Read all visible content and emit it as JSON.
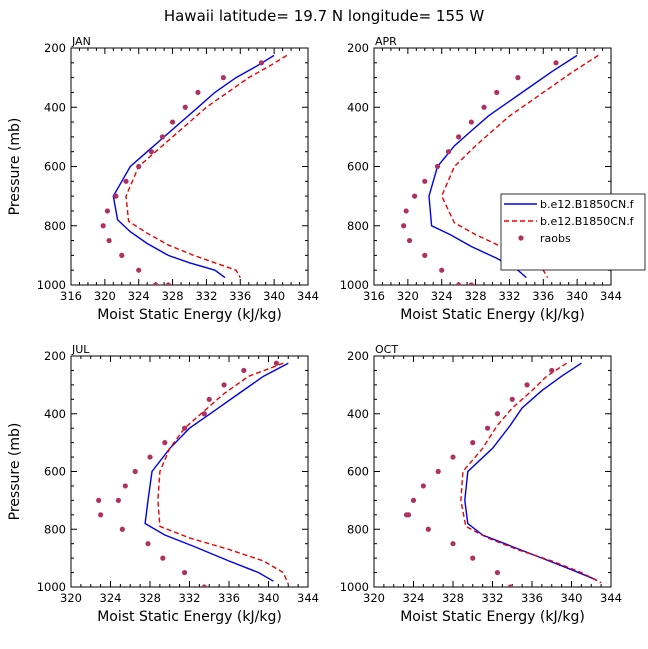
{
  "figure": {
    "title": "Hawaii  latitude= 19.7 N longitude= 155 W"
  },
  "chart_data": [
    {
      "type": "line",
      "panel": "JAN",
      "title": "JAN",
      "xlabel": "Moist Static Energy (kJ/kg)",
      "ylabel": "Pressure (mb)",
      "xlim": [
        316,
        344
      ],
      "ylim": [
        1000,
        200
      ],
      "xticks": [
        316,
        320,
        324,
        328,
        332,
        336,
        340,
        344
      ],
      "yticks": [
        200,
        400,
        600,
        800,
        1000
      ],
      "series": [
        {
          "name": "b.e12.B1850CN.f",
          "style": "solid",
          "color": "#0000ee",
          "x": [
            340.0,
            338.0,
            335.5,
            333.0,
            331.0,
            329.0,
            327.0,
            325.0,
            323.0,
            321.0,
            321.5,
            323.0,
            325.0,
            327.5,
            330.0,
            333.0,
            334.2
          ],
          "y": [
            225,
            260,
            300,
            350,
            400,
            450,
            500,
            550,
            600,
            700,
            780,
            820,
            860,
            900,
            925,
            950,
            975
          ]
        },
        {
          "name": "b.e12.B1850CN.f",
          "style": "dashed",
          "color": "#ee0000",
          "x": [
            341.5,
            339.5,
            337.0,
            334.5,
            332.0,
            330.0,
            328.0,
            326.0,
            324.0,
            322.5,
            322.8,
            325.0,
            327.5,
            330.5,
            333.0,
            335.5,
            336.0
          ],
          "y": [
            225,
            260,
            300,
            350,
            400,
            450,
            500,
            550,
            600,
            700,
            785,
            825,
            865,
            900,
            925,
            950,
            975
          ]
        },
        {
          "name": "raobs",
          "style": "markers",
          "color": "#b03060",
          "x": [
            338.5,
            334.0,
            331.0,
            329.5,
            328.0,
            326.8,
            325.5,
            324.0,
            322.5,
            321.3,
            320.3,
            319.8,
            320.5,
            322.0,
            324.0,
            326.0,
            327.5
          ],
          "y": [
            250,
            300,
            350,
            400,
            450,
            500,
            550,
            600,
            650,
            700,
            750,
            800,
            850,
            900,
            950,
            1000,
            1000
          ]
        }
      ]
    },
    {
      "type": "line",
      "panel": "APR",
      "title": "APR",
      "xlabel": "Moist Static Energy (kJ/kg)",
      "ylabel": "",
      "xlim": [
        316,
        344
      ],
      "ylim": [
        1000,
        200
      ],
      "xticks": [
        316,
        320,
        324,
        328,
        332,
        336,
        340,
        344
      ],
      "yticks": [
        200,
        400,
        600,
        800,
        1000
      ],
      "legend": {
        "placement": "right",
        "entries": [
          {
            "label": "b.e12.B1850CN.f",
            "style": "solid",
            "color": "#0000ee"
          },
          {
            "label": "b.e12.B1850CN.f",
            "style": "dashed",
            "color": "#ee0000"
          },
          {
            "label": "raobs",
            "style": "markers",
            "color": "#b03060"
          }
        ]
      },
      "series": [
        {
          "name": "b.e12.B1850CN.f",
          "style": "solid",
          "color": "#0000ee",
          "x": [
            340.0,
            337.0,
            334.5,
            332.0,
            329.5,
            327.5,
            325.5,
            323.5,
            322.5,
            322.8,
            325.0,
            327.5,
            330.5,
            333.0,
            334.0
          ],
          "y": [
            225,
            280,
            330,
            380,
            430,
            480,
            530,
            600,
            700,
            800,
            830,
            870,
            910,
            950,
            975
          ]
        },
        {
          "name": "b.e12.B1850CN.f",
          "style": "dashed",
          "color": "#ee0000",
          "x": [
            342.5,
            339.5,
            337.0,
            334.5,
            332.0,
            330.0,
            328.0,
            325.5,
            324.0,
            325.5,
            328.0,
            331.0,
            334.0,
            336.0,
            336.5
          ],
          "y": [
            225,
            280,
            330,
            380,
            430,
            480,
            530,
            600,
            700,
            790,
            830,
            870,
            910,
            950,
            975
          ]
        },
        {
          "name": "raobs",
          "style": "markers",
          "color": "#b03060",
          "x": [
            337.5,
            333.0,
            330.5,
            329.0,
            327.5,
            326.0,
            324.8,
            323.5,
            322.0,
            320.8,
            319.8,
            319.5,
            320.2,
            322.0,
            324.0,
            326.0,
            327.5
          ],
          "y": [
            250,
            300,
            350,
            400,
            450,
            500,
            550,
            600,
            650,
            700,
            750,
            800,
            850,
            900,
            950,
            1000,
            1000
          ]
        }
      ]
    },
    {
      "type": "line",
      "panel": "JUL",
      "title": "JUL",
      "xlabel": "Moist Static Energy (kJ/kg)",
      "ylabel": "Pressure (mb)",
      "xlim": [
        320,
        344
      ],
      "ylim": [
        1000,
        200
      ],
      "xticks": [
        320,
        324,
        328,
        332,
        336,
        340,
        344
      ],
      "yticks": [
        200,
        400,
        600,
        800,
        1000
      ],
      "series": [
        {
          "name": "b.e12.B1850CN.f",
          "style": "solid",
          "color": "#0000ee",
          "x": [
            342.0,
            339.5,
            337.0,
            334.5,
            332.0,
            330.0,
            328.2,
            327.8,
            327.5,
            329.5,
            332.5,
            336.0,
            339.0,
            340.5
          ],
          "y": [
            225,
            270,
            330,
            390,
            450,
            520,
            600,
            700,
            780,
            820,
            860,
            910,
            950,
            980
          ]
        },
        {
          "name": "b.e12.B1850CN.f",
          "style": "dashed",
          "color": "#ee0000",
          "x": [
            341.5,
            338.0,
            335.5,
            333.5,
            331.5,
            330.0,
            329.0,
            328.8,
            329.0,
            332.0,
            336.0,
            339.5,
            341.5,
            342.0
          ],
          "y": [
            225,
            270,
            330,
            390,
            450,
            520,
            600,
            700,
            790,
            830,
            870,
            910,
            950,
            990
          ]
        },
        {
          "name": "raobs",
          "style": "markers",
          "color": "#b03060",
          "x": [
            340.8,
            337.5,
            335.5,
            334.0,
            333.5,
            331.5,
            329.5,
            328.0,
            326.5,
            325.5,
            324.8,
            322.8,
            323.0,
            325.2,
            327.8,
            329.3,
            331.5,
            333.5
          ],
          "y": [
            225,
            250,
            300,
            350,
            400,
            450,
            500,
            550,
            600,
            650,
            700,
            700,
            750,
            800,
            850,
            900,
            950,
            1000
          ]
        }
      ]
    },
    {
      "type": "line",
      "panel": "OCT",
      "title": "OCT",
      "xlabel": "Moist Static Energy (kJ/kg)",
      "ylabel": "",
      "xlim": [
        320,
        344
      ],
      "ylim": [
        1000,
        200
      ],
      "xticks": [
        320,
        324,
        328,
        332,
        336,
        340,
        344
      ],
      "yticks": [
        200,
        400,
        600,
        800,
        1000
      ],
      "series": [
        {
          "name": "b.e12.B1850CN.f",
          "style": "solid",
          "color": "#0000ee",
          "x": [
            341.0,
            339.0,
            337.0,
            335.0,
            333.8,
            332.0,
            329.5,
            329.2,
            329.5,
            331.0,
            334.0,
            337.0,
            340.0,
            342.5
          ],
          "y": [
            225,
            270,
            320,
            380,
            440,
            520,
            600,
            700,
            780,
            820,
            860,
            900,
            940,
            975
          ]
        },
        {
          "name": "b.e12.B1850CN.f",
          "style": "dashed",
          "color": "#ee0000",
          "x": [
            339.5,
            337.5,
            336.0,
            334.0,
            332.5,
            331.0,
            329.0,
            328.8,
            329.3,
            331.5,
            334.5,
            338.0,
            341.0,
            343.0
          ],
          "y": [
            225,
            270,
            320,
            380,
            440,
            520,
            600,
            700,
            790,
            830,
            870,
            910,
            950,
            985
          ]
        },
        {
          "name": "raobs",
          "style": "markers",
          "color": "#b03060",
          "x": [
            338.0,
            335.5,
            334.0,
            332.5,
            331.5,
            330.0,
            328.0,
            326.5,
            325.0,
            324.0,
            323.3,
            323.5,
            325.5,
            328.0,
            330.0,
            332.5,
            333.8
          ],
          "y": [
            250,
            300,
            350,
            400,
            450,
            500,
            550,
            600,
            650,
            700,
            750,
            750,
            800,
            850,
            900,
            950,
            1000
          ]
        }
      ]
    }
  ]
}
